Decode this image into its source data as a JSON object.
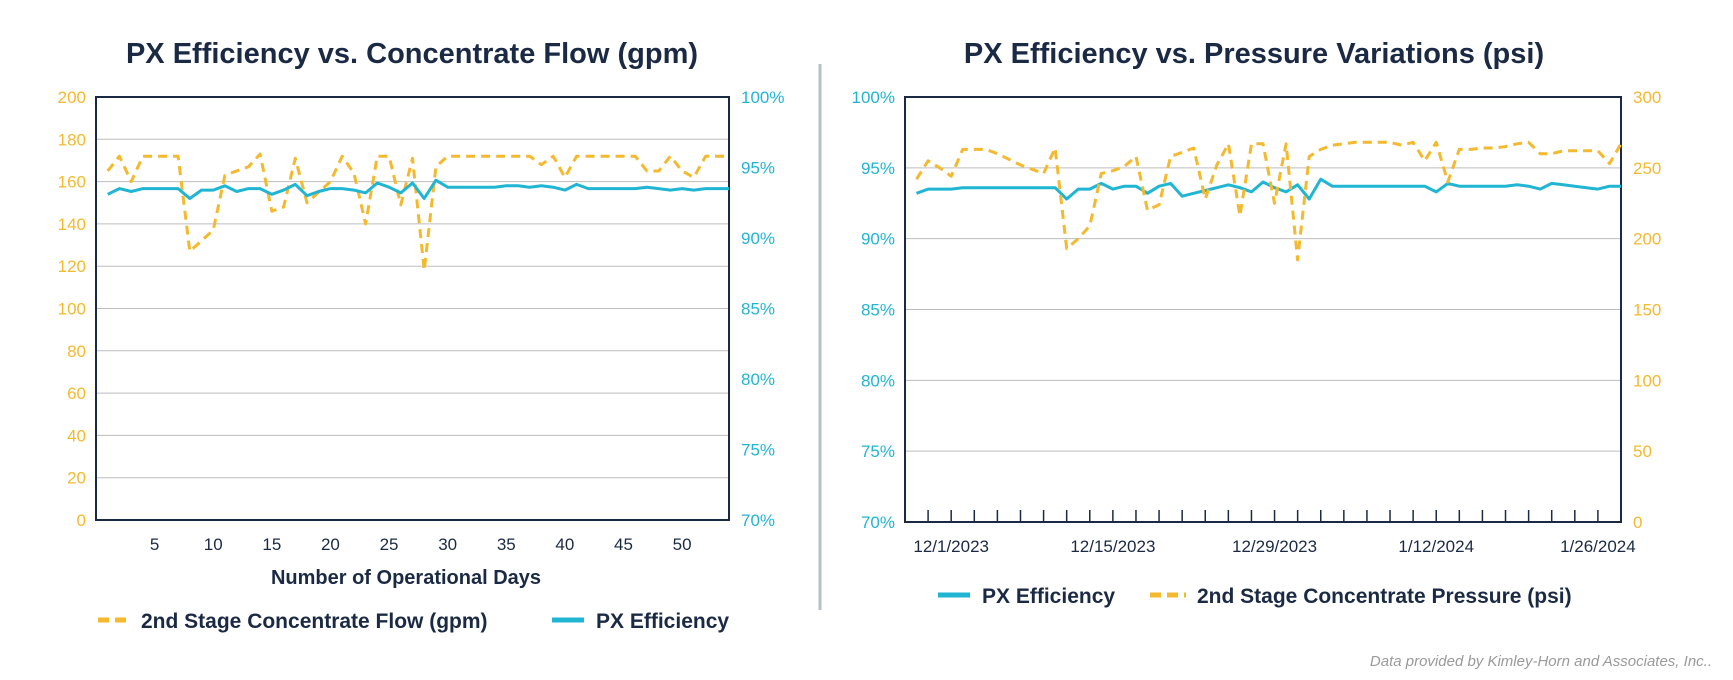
{
  "colors": {
    "flow": "#f4b92e",
    "eff": "#1fb5d3",
    "pressure": "#f4b92e",
    "dark": "#1b2a44",
    "divider": "#b5c0c8"
  },
  "credit": "Data provided by Kimley-Horn and Associates, Inc..",
  "chart_data": [
    {
      "type": "line",
      "title": "PX Efficiency vs. Concentrate Flow (gpm)",
      "xlabel": "Number of Operational Days",
      "x_ticks": [
        "5",
        "10",
        "15",
        "20",
        "25",
        "30",
        "35",
        "40",
        "45",
        "50"
      ],
      "xlim": [
        0,
        54
      ],
      "left_axis": {
        "ticks": [
          "0",
          "20",
          "40",
          "60",
          "80",
          "100",
          "120",
          "140",
          "160",
          "180",
          "200"
        ],
        "lim": [
          0,
          200
        ]
      },
      "right_axis": {
        "ticks": [
          "70%",
          "75%",
          "80%",
          "85%",
          "90%",
          "95%",
          "100%"
        ],
        "lim": [
          70,
          100
        ]
      },
      "series": [
        {
          "name": "2nd Stage Concentrate Flow (gpm)",
          "axis": "left",
          "style": "dashed",
          "x": [
            1,
            2,
            3,
            4,
            5,
            6,
            7,
            8,
            9,
            10,
            11,
            12,
            13,
            14,
            15,
            16,
            17,
            18,
            19,
            20,
            21,
            22,
            23,
            24,
            25,
            26,
            27,
            28,
            29,
            30,
            31,
            32,
            33,
            34,
            35,
            36,
            37,
            38,
            39,
            40,
            41,
            42,
            43,
            44,
            45,
            46,
            47,
            48,
            49,
            50,
            51,
            52,
            53,
            54
          ],
          "values": [
            165,
            172,
            160,
            172,
            172,
            172,
            172,
            127,
            132,
            137,
            163,
            165,
            167,
            173,
            146,
            148,
            171,
            150,
            155,
            160,
            172,
            164,
            140,
            172,
            172,
            149,
            171,
            118,
            167,
            172,
            172,
            172,
            172,
            172,
            172,
            172,
            172,
            168,
            172,
            162,
            172,
            172,
            172,
            172,
            172,
            172,
            165,
            165,
            172,
            165,
            162,
            172,
            172,
            172
          ]
        },
        {
          "name": "PX Efficiency",
          "axis": "right",
          "style": "solid",
          "x": [
            1,
            2,
            3,
            4,
            5,
            6,
            7,
            8,
            9,
            10,
            11,
            12,
            13,
            14,
            15,
            16,
            17,
            18,
            19,
            20,
            21,
            22,
            23,
            24,
            25,
            26,
            27,
            28,
            29,
            30,
            31,
            32,
            33,
            34,
            35,
            36,
            37,
            38,
            39,
            40,
            41,
            42,
            43,
            44,
            45,
            46,
            47,
            48,
            49,
            50,
            51,
            52,
            53,
            54
          ],
          "values": [
            93.1,
            93.5,
            93.3,
            93.5,
            93.5,
            93.5,
            93.5,
            92.8,
            93.4,
            93.4,
            93.7,
            93.3,
            93.5,
            93.5,
            93.1,
            93.4,
            93.8,
            93.0,
            93.3,
            93.5,
            93.5,
            93.4,
            93.2,
            93.9,
            93.6,
            93.2,
            93.9,
            92.8,
            94.1,
            93.6,
            93.6,
            93.6,
            93.6,
            93.6,
            93.7,
            93.7,
            93.6,
            93.7,
            93.6,
            93.4,
            93.8,
            93.5,
            93.5,
            93.5,
            93.5,
            93.5,
            93.6,
            93.5,
            93.4,
            93.5,
            93.4,
            93.5,
            93.5,
            93.5
          ]
        }
      ],
      "legend": "bottom"
    },
    {
      "type": "line",
      "title": "PX Efficiency vs. Pressure Variations (psi)",
      "x_ticks": [
        "12/1/2023",
        "12/15/2023",
        "12/29/2023",
        "1/12/2024",
        "1/26/2024"
      ],
      "x_tick_days": [
        4,
        18,
        32,
        46,
        60
      ],
      "xlim": [
        0,
        62
      ],
      "left_axis": {
        "ticks": [
          "70%",
          "75%",
          "80%",
          "85%",
          "90%",
          "95%",
          "100%"
        ],
        "lim": [
          70,
          100
        ]
      },
      "right_axis": {
        "ticks": [
          "0",
          "50",
          "100",
          "150",
          "200",
          "250",
          "300"
        ],
        "lim": [
          0,
          300
        ]
      },
      "series": [
        {
          "name": "PX Efficiency",
          "axis": "left",
          "style": "solid",
          "x": [
            1,
            2,
            3,
            4,
            5,
            6,
            7,
            8,
            9,
            10,
            11,
            12,
            13,
            14,
            15,
            16,
            17,
            18,
            19,
            20,
            21,
            22,
            23,
            24,
            25,
            26,
            27,
            28,
            29,
            30,
            31,
            32,
            33,
            34,
            35,
            36,
            37,
            38,
            39,
            40,
            41,
            42,
            43,
            44,
            45,
            46,
            47,
            48,
            49,
            50,
            51,
            52,
            53,
            54,
            55,
            56,
            57,
            58,
            59,
            60,
            61,
            62
          ],
          "values": [
            93.2,
            93.5,
            93.5,
            93.5,
            93.6,
            93.6,
            93.6,
            93.6,
            93.6,
            93.6,
            93.6,
            93.6,
            93.6,
            92.8,
            93.5,
            93.5,
            93.9,
            93.5,
            93.7,
            93.7,
            93.2,
            93.7,
            93.9,
            93.0,
            93.2,
            93.4,
            93.6,
            93.8,
            93.6,
            93.3,
            94.0,
            93.6,
            93.3,
            93.8,
            92.8,
            94.2,
            93.7,
            93.7,
            93.7,
            93.7,
            93.7,
            93.7,
            93.7,
            93.7,
            93.7,
            93.3,
            93.9,
            93.7,
            93.7,
            93.7,
            93.7,
            93.7,
            93.8,
            93.7,
            93.5,
            93.9,
            93.8,
            93.7,
            93.6,
            93.5,
            93.7,
            93.7
          ]
        },
        {
          "name": "2nd Stage Concentrate Pressure (psi)",
          "axis": "right",
          "style": "dashed",
          "x": [
            1,
            2,
            3,
            4,
            5,
            6,
            7,
            8,
            9,
            10,
            11,
            12,
            13,
            14,
            15,
            16,
            17,
            18,
            19,
            20,
            21,
            22,
            23,
            24,
            25,
            26,
            27,
            28,
            29,
            30,
            31,
            32,
            33,
            34,
            35,
            36,
            37,
            38,
            39,
            40,
            41,
            42,
            43,
            44,
            45,
            46,
            47,
            48,
            49,
            50,
            51,
            52,
            53,
            54,
            55,
            56,
            57,
            58,
            59,
            60,
            61,
            62
          ],
          "values": [
            242,
            255,
            250,
            244,
            263,
            263,
            263,
            260,
            256,
            252,
            249,
            246,
            264,
            193,
            200,
            209,
            246,
            248,
            251,
            258,
            220,
            224,
            258,
            261,
            264,
            228,
            252,
            267,
            216,
            267,
            267,
            225,
            267,
            185,
            258,
            263,
            266,
            267,
            268,
            268,
            268,
            268,
            266,
            268,
            255,
            268,
            240,
            263,
            263,
            264,
            264,
            265,
            267,
            268,
            260,
            260,
            262,
            262,
            262,
            262,
            253,
            267
          ]
        }
      ],
      "legend": "bottom"
    }
  ]
}
